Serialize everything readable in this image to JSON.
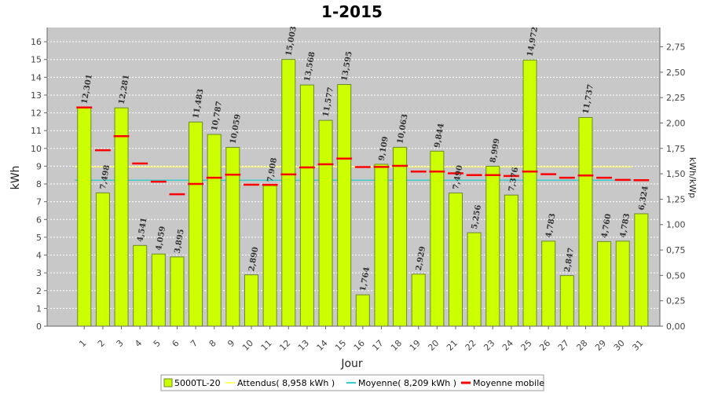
{
  "chart_data": {
    "type": "bar",
    "title": "1-2015",
    "xlabel": "Jour",
    "ylabel": "kWh",
    "y2label": "kWh/kWp",
    "ylim": [
      0,
      16.8
    ],
    "y2lim": [
      0,
      2.94
    ],
    "y_ticks": [
      "0",
      "1",
      "2",
      "3",
      "4",
      "5",
      "6",
      "7",
      "8",
      "9",
      "10",
      "11",
      "12",
      "13",
      "14",
      "15",
      "16"
    ],
    "y2_ticks": [
      "0,00",
      "0,25",
      "0,50",
      "0,75",
      "1,00",
      "1,25",
      "1,50",
      "1,75",
      "2,00",
      "2,25",
      "2,50",
      "2,75"
    ],
    "categories": [
      "1",
      "2",
      "3",
      "4",
      "5",
      "6",
      "7",
      "8",
      "9",
      "10",
      "11",
      "12",
      "13",
      "14",
      "15",
      "16",
      "17",
      "18",
      "19",
      "20",
      "21",
      "22",
      "23",
      "24",
      "25",
      "26",
      "27",
      "28",
      "29",
      "30",
      "31"
    ],
    "value_labels": [
      "12,301",
      "7,498",
      "12,281",
      "4,541",
      "4,059",
      "3,895",
      "11,483",
      "10,787",
      "10,059",
      "2,890",
      "7,908",
      "15,003",
      "13,568",
      "11,577",
      "13,595",
      "1,764",
      "9,109",
      "10,063",
      "2,929",
      "9,844",
      "7,490",
      "5,256",
      "8,999",
      "7,376",
      "14,972",
      "4,783",
      "2,847",
      "11,737",
      "4,760",
      "4,783",
      "6,324"
    ],
    "series": [
      {
        "name": "5000TL-20",
        "values": [
          12.301,
          7.498,
          12.281,
          4.541,
          4.059,
          3.895,
          11.483,
          10.787,
          10.059,
          2.89,
          7.908,
          15.003,
          13.568,
          11.577,
          13.595,
          1.764,
          9.109,
          10.063,
          2.929,
          9.844,
          7.49,
          5.256,
          8.999,
          7.376,
          14.972,
          4.783,
          2.847,
          11.737,
          4.76,
          4.783,
          6.324
        ]
      },
      {
        "name": "Moyenne mobile",
        "values": [
          12.301,
          9.9,
          10.69,
          9.15,
          8.13,
          7.42,
          8.0,
          8.35,
          8.52,
          7.96,
          7.95,
          8.54,
          8.93,
          9.11,
          9.43,
          8.95,
          8.96,
          9.02,
          8.7,
          8.7,
          8.6,
          8.5,
          8.5,
          8.45,
          8.7,
          8.55,
          8.35,
          8.48,
          8.35,
          8.23,
          8.21
        ]
      }
    ],
    "reference_lines": [
      {
        "name": "Attendus( 8,958 kWh )",
        "value": 8.958
      },
      {
        "name": "Moyenne( 8,209 kWh )",
        "value": 8.209
      }
    ],
    "grid": true,
    "legend_position": "bottom",
    "colors": {
      "bar_fill": "#ccff00",
      "bar_stroke": "#6a8a2a",
      "plot_bg": "#c8c8c8",
      "grid": "#ffffff",
      "expected": "#ffff66",
      "average": "#33cccc",
      "moving_avg": "#ff0000"
    }
  }
}
